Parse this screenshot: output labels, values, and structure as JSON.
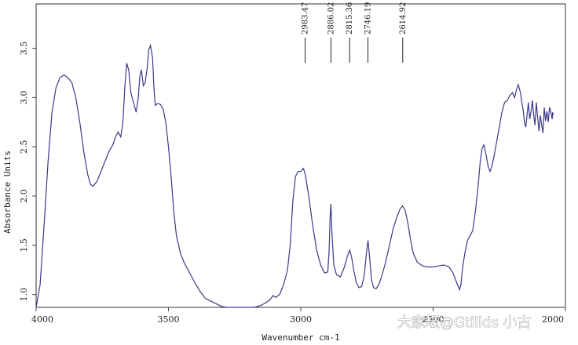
{
  "chart_data": {
    "type": "line",
    "xlabel": "Wavenumber cm-1",
    "ylabel": "Absorbance Units",
    "xlim": [
      4000,
      2000
    ],
    "ylim": [
      0.87,
      3.95
    ],
    "x_reversed": true,
    "x_ticks": [
      4000,
      3500,
      3000,
      2500,
      2000
    ],
    "x_tick_labels": [
      "4000",
      "3500",
      "3000",
      "2500",
      "2000"
    ],
    "y_ticks": [
      1.0,
      1.5,
      2.0,
      2.5,
      3.0,
      3.5
    ],
    "y_tick_labels": [
      "1.0",
      "1.5",
      "2.0",
      "2.5",
      "3.0",
      "3.5"
    ],
    "grid": false,
    "series": [
      {
        "color": "#3a3a8a",
        "points": [
          [
            4000,
            0.86
          ],
          [
            3985,
            1.1
          ],
          [
            3970,
            1.7
          ],
          [
            3955,
            2.35
          ],
          [
            3940,
            2.85
          ],
          [
            3925,
            3.1
          ],
          [
            3910,
            3.2
          ],
          [
            3895,
            3.23
          ],
          [
            3880,
            3.2
          ],
          [
            3865,
            3.15
          ],
          [
            3850,
            3.0
          ],
          [
            3835,
            2.75
          ],
          [
            3820,
            2.45
          ],
          [
            3805,
            2.22
          ],
          [
            3795,
            2.12
          ],
          [
            3785,
            2.1
          ],
          [
            3770,
            2.15
          ],
          [
            3755,
            2.25
          ],
          [
            3740,
            2.35
          ],
          [
            3725,
            2.45
          ],
          [
            3710,
            2.52
          ],
          [
            3700,
            2.6
          ],
          [
            3690,
            2.65
          ],
          [
            3680,
            2.6
          ],
          [
            3672,
            2.75
          ],
          [
            3665,
            3.1
          ],
          [
            3658,
            3.35
          ],
          [
            3650,
            3.28
          ],
          [
            3642,
            3.05
          ],
          [
            3632,
            2.95
          ],
          [
            3622,
            2.85
          ],
          [
            3614,
            3.0
          ],
          [
            3608,
            3.22
          ],
          [
            3602,
            3.28
          ],
          [
            3595,
            3.12
          ],
          [
            3588,
            3.15
          ],
          [
            3580,
            3.3
          ],
          [
            3575,
            3.48
          ],
          [
            3568,
            3.53
          ],
          [
            3560,
            3.4
          ],
          [
            3555,
            3.1
          ],
          [
            3550,
            2.92
          ],
          [
            3540,
            2.94
          ],
          [
            3530,
            2.93
          ],
          [
            3520,
            2.88
          ],
          [
            3510,
            2.75
          ],
          [
            3500,
            2.5
          ],
          [
            3490,
            2.2
          ],
          [
            3480,
            1.85
          ],
          [
            3470,
            1.6
          ],
          [
            3455,
            1.42
          ],
          [
            3440,
            1.32
          ],
          [
            3420,
            1.22
          ],
          [
            3400,
            1.12
          ],
          [
            3380,
            1.03
          ],
          [
            3360,
            0.96
          ],
          [
            3330,
            0.92
          ],
          [
            3300,
            0.88
          ],
          [
            3280,
            0.86
          ],
          [
            3175,
            0.86
          ],
          [
            3150,
            0.89
          ],
          [
            3130,
            0.92
          ],
          [
            3115,
            0.95
          ],
          [
            3105,
            0.99
          ],
          [
            3095,
            0.97
          ],
          [
            3080,
            1.0
          ],
          [
            3065,
            1.1
          ],
          [
            3050,
            1.25
          ],
          [
            3040,
            1.5
          ],
          [
            3030,
            1.95
          ],
          [
            3020,
            2.2
          ],
          [
            3010,
            2.25
          ],
          [
            3000,
            2.25
          ],
          [
            2990,
            2.28
          ],
          [
            2983,
            2.22
          ],
          [
            2970,
            2.0
          ],
          [
            2955,
            1.7
          ],
          [
            2940,
            1.45
          ],
          [
            2925,
            1.3
          ],
          [
            2910,
            1.22
          ],
          [
            2898,
            1.23
          ],
          [
            2893,
            1.45
          ],
          [
            2889,
            1.8
          ],
          [
            2886,
            1.92
          ],
          [
            2882,
            1.6
          ],
          [
            2875,
            1.3
          ],
          [
            2865,
            1.2
          ],
          [
            2850,
            1.18
          ],
          [
            2835,
            1.28
          ],
          [
            2825,
            1.38
          ],
          [
            2815,
            1.45
          ],
          [
            2808,
            1.38
          ],
          [
            2800,
            1.25
          ],
          [
            2790,
            1.12
          ],
          [
            2780,
            1.07
          ],
          [
            2770,
            1.08
          ],
          [
            2760,
            1.2
          ],
          [
            2752,
            1.42
          ],
          [
            2746,
            1.55
          ],
          [
            2740,
            1.38
          ],
          [
            2733,
            1.15
          ],
          [
            2725,
            1.07
          ],
          [
            2715,
            1.06
          ],
          [
            2705,
            1.1
          ],
          [
            2695,
            1.18
          ],
          [
            2680,
            1.32
          ],
          [
            2665,
            1.5
          ],
          [
            2650,
            1.68
          ],
          [
            2635,
            1.8
          ],
          [
            2625,
            1.87
          ],
          [
            2615,
            1.9
          ],
          [
            2605,
            1.85
          ],
          [
            2595,
            1.72
          ],
          [
            2585,
            1.55
          ],
          [
            2575,
            1.42
          ],
          [
            2560,
            1.33
          ],
          [
            2540,
            1.29
          ],
          [
            2520,
            1.28
          ],
          [
            2500,
            1.28
          ],
          [
            2480,
            1.29
          ],
          [
            2460,
            1.3
          ],
          [
            2440,
            1.28
          ],
          [
            2425,
            1.22
          ],
          [
            2415,
            1.15
          ],
          [
            2408,
            1.1
          ],
          [
            2400,
            1.05
          ],
          [
            2395,
            1.1
          ],
          [
            2388,
            1.28
          ],
          [
            2380,
            1.42
          ],
          [
            2370,
            1.55
          ],
          [
            2360,
            1.6
          ],
          [
            2350,
            1.65
          ],
          [
            2340,
            1.85
          ],
          [
            2330,
            2.1
          ],
          [
            2322,
            2.35
          ],
          [
            2315,
            2.48
          ],
          [
            2308,
            2.52
          ],
          [
            2300,
            2.42
          ],
          [
            2292,
            2.3
          ],
          [
            2285,
            2.25
          ],
          [
            2278,
            2.3
          ],
          [
            2270,
            2.4
          ],
          [
            2260,
            2.55
          ],
          [
            2250,
            2.7
          ],
          [
            2240,
            2.85
          ],
          [
            2230,
            2.95
          ],
          [
            2220,
            2.97
          ],
          [
            2210,
            3.02
          ],
          [
            2200,
            3.05
          ],
          [
            2192,
            3.0
          ],
          [
            2185,
            3.08
          ],
          [
            2178,
            3.13
          ],
          [
            2170,
            3.05
          ],
          [
            2165,
            2.95
          ],
          [
            2160,
            2.88
          ],
          [
            2155,
            2.75
          ],
          [
            2150,
            2.7
          ],
          [
            2145,
            2.82
          ],
          [
            2140,
            2.95
          ],
          [
            2135,
            2.78
          ],
          [
            2130,
            2.86
          ],
          [
            2125,
            2.97
          ],
          [
            2120,
            2.82
          ],
          [
            2115,
            2.72
          ],
          [
            2110,
            2.95
          ],
          [
            2105,
            2.8
          ],
          [
            2100,
            2.66
          ],
          [
            2095,
            2.82
          ],
          [
            2090,
            2.72
          ],
          [
            2085,
            2.64
          ],
          [
            2080,
            2.9
          ],
          [
            2075,
            2.76
          ],
          [
            2070,
            2.86
          ],
          [
            2065,
            2.75
          ],
          [
            2060,
            2.9
          ],
          [
            2055,
            2.85
          ],
          [
            2050,
            2.78
          ],
          [
            2048,
            2.85
          ],
          [
            2046,
            2.82
          ]
        ]
      }
    ],
    "annotations": [
      {
        "label": "2983.47",
        "x": 2983.47
      },
      {
        "label": "2886.02",
        "x": 2886.02
      },
      {
        "label": "2815.36",
        "x": 2815.36
      },
      {
        "label": "2746.19",
        "x": 2746.19
      },
      {
        "label": "2614.92",
        "x": 2614.92
      }
    ]
  },
  "watermark": {
    "text": "大家坛@Gtillds 小古"
  }
}
